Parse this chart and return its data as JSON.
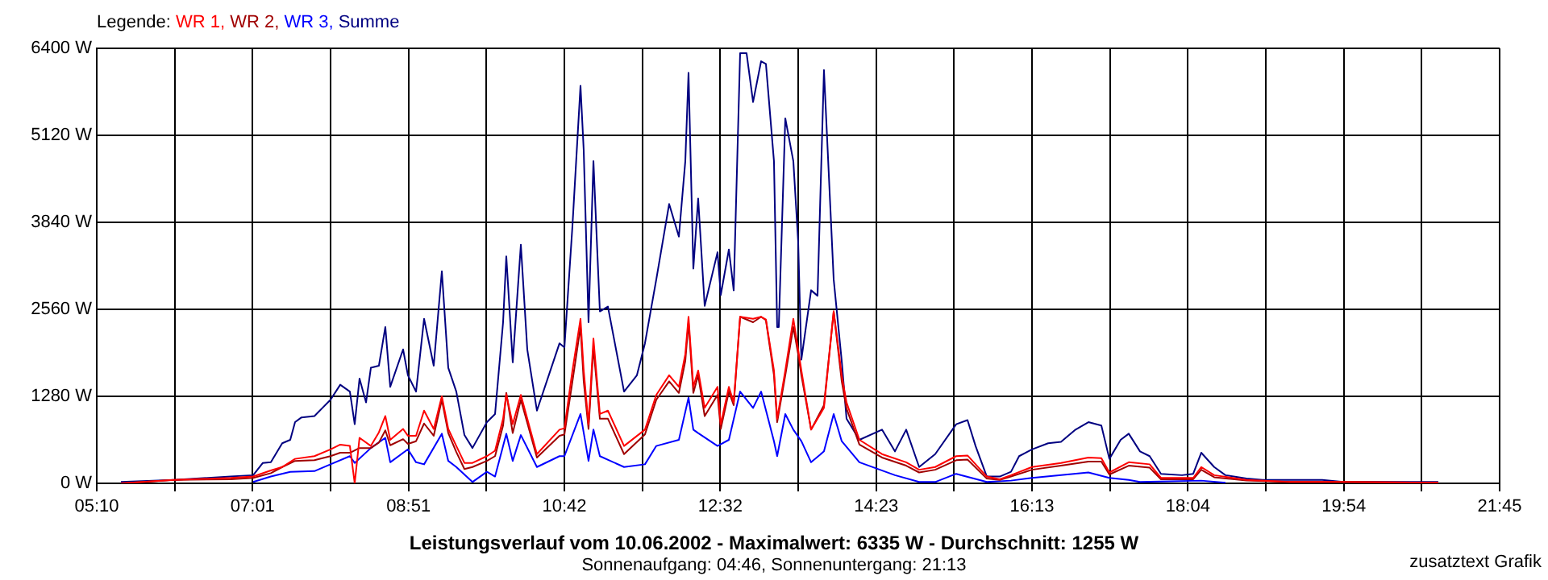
{
  "chart_data": {
    "type": "line",
    "title": "Leistungsverlauf vom 10.06.2002 - Maximalwert: 6335 W - Durchschnitt: 1255 W",
    "subtitle": "Sonnenaufgang: 04:46, Sonnenuntergang: 21:13",
    "legend_title": "Legende:",
    "legend": "top left",
    "grid": true,
    "annotations": [
      "zusatztext Grafik"
    ],
    "xlim": [
      5.1667,
      21.75
    ],
    "xticks": [
      {
        "value": 5.1667,
        "label": "05:10"
      },
      {
        "value": 6.088,
        "label": null
      },
      {
        "value": 7.0093,
        "label": "07:01"
      },
      {
        "value": 7.9306,
        "label": null
      },
      {
        "value": 8.8519,
        "label": "08:51"
      },
      {
        "value": 9.7732,
        "label": null
      },
      {
        "value": 10.6945,
        "label": "10:42"
      },
      {
        "value": 11.6158,
        "label": null
      },
      {
        "value": 12.5371,
        "label": "12:32"
      },
      {
        "value": 13.4584,
        "label": null
      },
      {
        "value": 14.3797,
        "label": "14:23"
      },
      {
        "value": 15.301,
        "label": null
      },
      {
        "value": 16.2223,
        "label": "16:13"
      },
      {
        "value": 17.1436,
        "label": null
      },
      {
        "value": 18.0649,
        "label": "18:04"
      },
      {
        "value": 18.9862,
        "label": null
      },
      {
        "value": 19.9075,
        "label": "19:54"
      },
      {
        "value": 20.8288,
        "label": null
      },
      {
        "value": 21.75,
        "label": "21:45"
      }
    ],
    "ylim": [
      0,
      6400
    ],
    "yticks": [
      {
        "value": 0,
        "label": "0 W"
      },
      {
        "value": 1280,
        "label": "1280 W"
      },
      {
        "value": 2560,
        "label": "2560 W"
      },
      {
        "value": 3840,
        "label": "3840 W"
      },
      {
        "value": 5120,
        "label": "5120 W"
      },
      {
        "value": 6400,
        "label": "6400 W"
      }
    ],
    "series": [
      {
        "name": "WR 1,",
        "color": "#ff0000",
        "x": [
          5.453,
          6.081,
          6.749,
          7.016,
          7.225,
          7.359,
          7.511,
          7.74,
          7.93,
          8.045,
          8.159,
          8.216,
          8.273,
          8.407,
          8.502,
          8.578,
          8.636,
          8.788,
          8.845,
          8.941,
          9.036,
          9.15,
          9.246,
          9.322,
          9.417,
          9.513,
          9.608,
          9.779,
          9.875,
          9.97,
          10.008,
          10.084,
          10.18,
          10.37,
          10.637,
          10.695,
          10.79,
          10.885,
          10.923,
          10.98,
          11.038,
          11.114,
          11.209,
          11.4,
          11.647,
          11.781,
          11.933,
          12.048,
          12.124,
          12.162,
          12.219,
          12.276,
          12.353,
          12.505,
          12.543,
          12.639,
          12.696,
          12.772,
          12.925,
          13.02,
          13.077,
          13.172,
          13.21,
          13.306,
          13.401,
          13.458,
          13.496,
          13.611,
          13.763,
          13.878,
          13.973,
          14.03,
          14.182,
          14.449,
          14.735,
          14.888,
          15.078,
          15.326,
          15.46,
          15.688,
          15.841,
          15.974,
          16.222,
          16.565,
          16.889,
          17.042,
          17.137,
          17.366,
          17.613,
          17.747,
          18.128,
          18.223,
          18.376,
          18.757,
          19.272,
          19.901,
          21.025
        ],
        "values": [
          0,
          50,
          80,
          100,
          190,
          240,
          360,
          400,
          500,
          570,
          550,
          0,
          670,
          550,
          750,
          990,
          640,
          800,
          700,
          700,
          1070,
          800,
          1280,
          800,
          550,
          300,
          300,
          400,
          480,
          950,
          1310,
          870,
          1300,
          430,
          790,
          810,
          1660,
          2420,
          1660,
          870,
          2130,
          1020,
          1070,
          550,
          790,
          1300,
          1590,
          1420,
          1900,
          2450,
          1420,
          1660,
          1110,
          1420,
          870,
          1420,
          1190,
          2450,
          2420,
          2450,
          2410,
          1660,
          950,
          1660,
          2420,
          1970,
          1660,
          790,
          1110,
          2530,
          1590,
          1190,
          640,
          430,
          310,
          200,
          240,
          400,
          410,
          100,
          60,
          120,
          240,
          300,
          380,
          370,
          160,
          310,
          280,
          80,
          80,
          240,
          120,
          50,
          20,
          20,
          10
        ]
      },
      {
        "name": "WR 2,",
        "color": "#a00000",
        "x": [
          5.453,
          6.081,
          6.749,
          7.016,
          7.225,
          7.359,
          7.511,
          7.74,
          7.93,
          8.045,
          8.159,
          8.273,
          8.407,
          8.502,
          8.578,
          8.636,
          8.788,
          8.845,
          8.941,
          9.036,
          9.15,
          9.246,
          9.322,
          9.417,
          9.513,
          9.608,
          9.779,
          9.875,
          9.97,
          10.008,
          10.084,
          10.18,
          10.37,
          10.637,
          10.695,
          10.79,
          10.885,
          10.923,
          10.98,
          11.038,
          11.114,
          11.209,
          11.4,
          11.647,
          11.781,
          11.933,
          12.048,
          12.124,
          12.162,
          12.219,
          12.276,
          12.353,
          12.505,
          12.543,
          12.639,
          12.696,
          12.772,
          12.925,
          13.02,
          13.077,
          13.172,
          13.21,
          13.306,
          13.401,
          13.458,
          13.496,
          13.611,
          13.763,
          13.878,
          13.973,
          14.03,
          14.182,
          14.449,
          14.735,
          14.888,
          15.078,
          15.326,
          15.46,
          15.688,
          15.841,
          15.974,
          16.222,
          16.565,
          16.889,
          17.042,
          17.137,
          17.366,
          17.613,
          17.747,
          18.128,
          18.223,
          18.376,
          18.757,
          19.272,
          19.901,
          21.025
        ],
        "values": [
          0,
          50,
          60,
          80,
          150,
          240,
          330,
          340,
          400,
          450,
          450,
          520,
          520,
          600,
          780,
          560,
          650,
          580,
          620,
          880,
          700,
          1230,
          740,
          460,
          210,
          240,
          330,
          400,
          850,
          1330,
          740,
          1230,
          380,
          700,
          720,
          1500,
          2300,
          1500,
          800,
          2000,
          950,
          950,
          430,
          720,
          1230,
          1500,
          1330,
          1800,
          2370,
          1330,
          1590,
          990,
          1300,
          800,
          1350,
          1150,
          2450,
          2370,
          2450,
          2400,
          1590,
          900,
          1590,
          2300,
          1900,
          1590,
          790,
          1150,
          2530,
          1500,
          1100,
          570,
          380,
          260,
          160,
          200,
          340,
          350,
          70,
          50,
          100,
          200,
          260,
          320,
          320,
          130,
          260,
          230,
          60,
          60,
          200,
          90,
          40,
          20,
          20,
          10
        ]
      },
      {
        "name": "WR 3,",
        "color": "#0000ff",
        "x": [
          7.016,
          7.225,
          7.454,
          7.74,
          7.93,
          8.159,
          8.216,
          8.407,
          8.578,
          8.636,
          8.845,
          8.941,
          9.036,
          9.246,
          9.322,
          9.417,
          9.608,
          9.779,
          9.875,
          10.008,
          10.084,
          10.18,
          10.37,
          10.637,
          10.695,
          10.885,
          10.98,
          11.038,
          11.114,
          11.4,
          11.647,
          11.781,
          12.048,
          12.162,
          12.219,
          12.276,
          12.505,
          12.639,
          12.772,
          12.925,
          13.02,
          13.172,
          13.21,
          13.306,
          13.401,
          13.496,
          13.611,
          13.763,
          13.878,
          13.973,
          14.182,
          14.602,
          14.888,
          15.078,
          15.326,
          15.688,
          15.974,
          16.222,
          16.889,
          17.137,
          17.366,
          17.499,
          18.223,
          18.509
        ],
        "values": [
          20,
          100,
          170,
          180,
          280,
          400,
          300,
          520,
          670,
          310,
          500,
          310,
          280,
          730,
          330,
          240,
          20,
          170,
          100,
          730,
          330,
          710,
          240,
          400,
          400,
          1020,
          330,
          790,
          400,
          240,
          280,
          550,
          640,
          1260,
          790,
          740,
          550,
          640,
          1350,
          1110,
          1350,
          620,
          400,
          1020,
          790,
          620,
          310,
          470,
          1020,
          620,
          310,
          120,
          20,
          20,
          140,
          20,
          40,
          80,
          160,
          80,
          50,
          20,
          40,
          10
        ]
      },
      {
        "name": "Summe",
        "color": "#000080",
        "x": [
          5.453,
          6.081,
          6.749,
          7.016,
          7.13,
          7.225,
          7.359,
          7.454,
          7.511,
          7.587,
          7.74,
          7.835,
          7.93,
          8.045,
          8.159,
          8.216,
          8.273,
          8.35,
          8.407,
          8.502,
          8.578,
          8.636,
          8.788,
          8.845,
          8.941,
          9.036,
          9.15,
          9.246,
          9.322,
          9.417,
          9.513,
          9.608,
          9.779,
          9.875,
          9.97,
          10.008,
          10.084,
          10.18,
          10.256,
          10.37,
          10.637,
          10.695,
          10.79,
          10.885,
          10.923,
          10.98,
          11.038,
          11.114,
          11.209,
          11.4,
          11.552,
          11.647,
          11.781,
          11.933,
          12.048,
          12.124,
          12.162,
          12.219,
          12.276,
          12.353,
          12.505,
          12.543,
          12.639,
          12.696,
          12.772,
          12.848,
          12.925,
          13.02,
          13.077,
          13.172,
          13.21,
          13.229,
          13.306,
          13.401,
          13.458,
          13.496,
          13.611,
          13.687,
          13.763,
          13.878,
          13.973,
          14.03,
          14.182,
          14.449,
          14.602,
          14.735,
          14.888,
          15.078,
          15.326,
          15.46,
          15.555,
          15.688,
          15.841,
          15.974,
          16.07,
          16.222,
          16.413,
          16.565,
          16.737,
          16.889,
          17.042,
          17.137,
          17.27,
          17.366,
          17.499,
          17.613,
          17.747,
          17.995,
          18.128,
          18.223,
          18.376,
          18.509,
          18.757,
          18.948,
          19.272,
          19.653,
          19.901,
          21.025
        ],
        "values": [
          20,
          50,
          100,
          120,
          300,
          310,
          590,
          640,
          900,
          970,
          990,
          1110,
          1230,
          1450,
          1350,
          870,
          1540,
          1190,
          1700,
          1730,
          2300,
          1420,
          1970,
          1590,
          1350,
          2420,
          1730,
          3120,
          1700,
          1350,
          710,
          520,
          900,
          1020,
          2370,
          3340,
          1780,
          3510,
          1970,
          1070,
          2060,
          2000,
          3790,
          5850,
          4900,
          2370,
          4740,
          2530,
          2600,
          1350,
          1590,
          2060,
          3000,
          4110,
          3630,
          4740,
          6040,
          3160,
          4190,
          2610,
          3400,
          2770,
          3440,
          2840,
          6330,
          6330,
          5610,
          6210,
          6170,
          4740,
          2300,
          2300,
          5370,
          4740,
          3560,
          1820,
          2840,
          2760,
          6080,
          3000,
          1800,
          950,
          640,
          790,
          470,
          790,
          240,
          430,
          870,
          930,
          550,
          100,
          100,
          170,
          400,
          500,
          590,
          610,
          790,
          900,
          850,
          360,
          640,
          730,
          470,
          400,
          140,
          120,
          140,
          450,
          240,
          120,
          70,
          50,
          50,
          50,
          20,
          20
        ]
      }
    ]
  }
}
